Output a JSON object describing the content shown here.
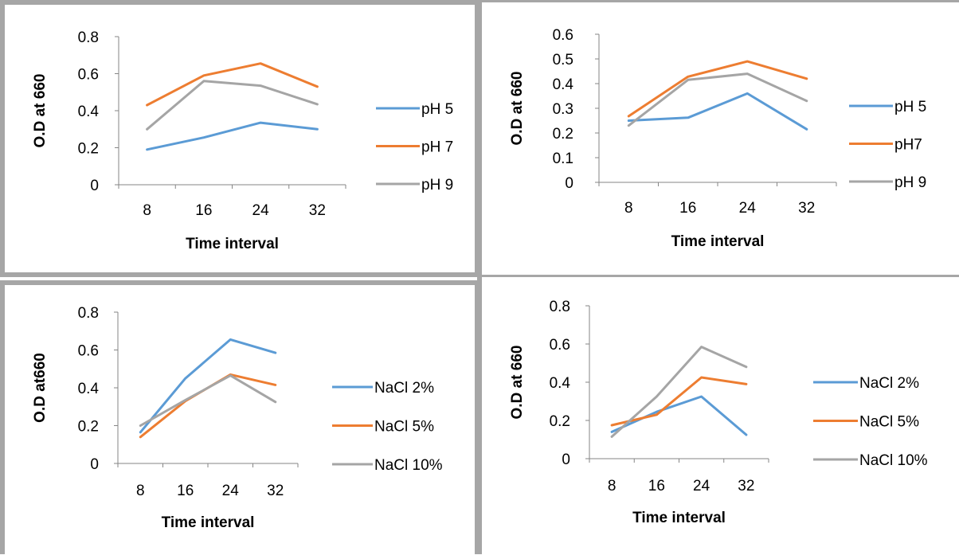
{
  "colors": {
    "series1": "#5b9bd5",
    "series2": "#ed7d31",
    "series3": "#a5a5a5",
    "axis": "#868686",
    "border": "#a6a6a6"
  },
  "chart_data": [
    {
      "type": "line",
      "x": [
        "8",
        "16",
        "24",
        "32"
      ],
      "xlabel": "Time interval",
      "ylabel": "O.D at 660",
      "ylim": [
        0,
        0.8
      ],
      "yticks": [
        "0",
        "0.2",
        "0.4",
        "0.6",
        "0.8"
      ],
      "legend": "right",
      "series": [
        {
          "name": "pH 5",
          "values": [
            0.19,
            0.255,
            0.335,
            0.3
          ]
        },
        {
          "name": "pH 7",
          "values": [
            0.43,
            0.59,
            0.655,
            0.53
          ]
        },
        {
          "name": "pH 9",
          "values": [
            0.3,
            0.56,
            0.535,
            0.435
          ]
        }
      ]
    },
    {
      "type": "line",
      "x": [
        "8",
        "16",
        "24",
        "32"
      ],
      "xlabel": "Time interval",
      "ylabel": "O.D at 660",
      "ylim": [
        0,
        0.6
      ],
      "yticks": [
        "0",
        "0.1",
        "0.2",
        "0.3",
        "0.4",
        "0.5",
        "0.6"
      ],
      "legend": "right",
      "series": [
        {
          "name": "pH 5",
          "values": [
            0.25,
            0.262,
            0.36,
            0.215
          ]
        },
        {
          "name": "pH7",
          "values": [
            0.268,
            0.428,
            0.49,
            0.42
          ]
        },
        {
          "name": "pH 9",
          "values": [
            0.23,
            0.415,
            0.44,
            0.33
          ]
        }
      ]
    },
    {
      "type": "line",
      "x": [
        "8",
        "16",
        "24",
        "32"
      ],
      "xlabel": "Time interval",
      "ylabel": "O.D at660",
      "ylim": [
        0,
        0.8
      ],
      "yticks": [
        "0",
        "0.2",
        "0.4",
        "0.6",
        "0.8"
      ],
      "legend": "right",
      "series": [
        {
          "name": "NaCl 2%",
          "values": [
            0.165,
            0.45,
            0.655,
            0.585
          ]
        },
        {
          "name": "NaCl 5%",
          "values": [
            0.14,
            0.33,
            0.47,
            0.415
          ]
        },
        {
          "name": "NaCl 10%",
          "values": [
            0.2,
            0.335,
            0.465,
            0.325
          ]
        }
      ]
    },
    {
      "type": "line",
      "x": [
        "8",
        "16",
        "24",
        "32"
      ],
      "xlabel": "Time interval",
      "ylabel": "O.D at 660",
      "ylim": [
        0,
        0.8
      ],
      "yticks": [
        "0",
        "0.2",
        "0.4",
        "0.6",
        "0.8"
      ],
      "legend": "right",
      "series": [
        {
          "name": "NaCl 2%",
          "values": [
            0.14,
            0.245,
            0.325,
            0.125
          ]
        },
        {
          "name": "NaCl 5%",
          "values": [
            0.175,
            0.23,
            0.425,
            0.39
          ]
        },
        {
          "name": "NaCl 10%",
          "values": [
            0.115,
            0.325,
            0.585,
            0.48
          ]
        }
      ]
    }
  ]
}
